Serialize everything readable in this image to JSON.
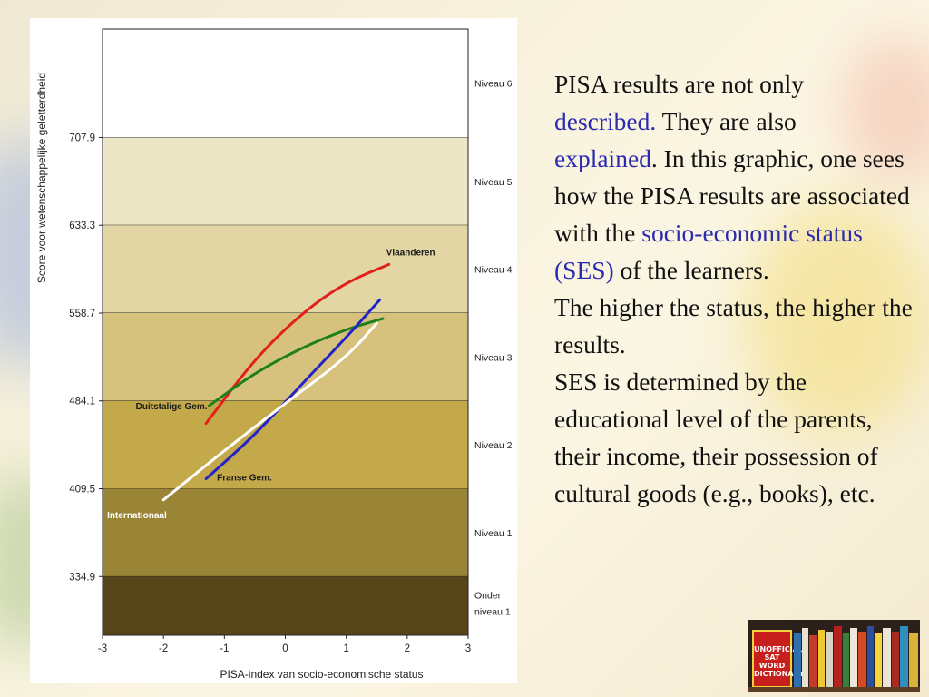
{
  "chart_data": {
    "type": "line",
    "ylabel": "Score voor wetenschappelijke geletterdheid",
    "xlabel": "PISA-index van socio-economische status",
    "xlim": [
      -3,
      3
    ],
    "ylim": [
      285,
      800
    ],
    "x_ticks": [
      "-3",
      "-2",
      "-1",
      "0",
      "1",
      "2",
      "3"
    ],
    "y_ticks": [
      334.9,
      409.5,
      484.1,
      558.7,
      633.3,
      707.9
    ],
    "bands": [
      {
        "label": "Niveau 6",
        "from": 707.9,
        "to": 800,
        "color": "#ffffff"
      },
      {
        "label": "Niveau 5",
        "from": 633.3,
        "to": 707.9,
        "color": "#ece5c6"
      },
      {
        "label": "Niveau 4",
        "from": 558.7,
        "to": 633.3,
        "color": "#e2d6a4"
      },
      {
        "label": "Niveau 3",
        "from": 484.1,
        "to": 558.7,
        "color": "#d6c27c"
      },
      {
        "label": "Niveau 2",
        "from": 409.5,
        "to": 484.1,
        "color": "#c4a94a"
      },
      {
        "label": "Niveau 1",
        "from": 334.9,
        "to": 409.5,
        "color": "#9a8435"
      },
      {
        "label": "Onder niveau 1",
        "from": 285,
        "to": 334.9,
        "color": "#564519"
      }
    ],
    "series": [
      {
        "name": "Vlaanderen",
        "color": "#e0201a",
        "x": [
          -1.3,
          -0.5,
          0.3,
          1.0,
          1.7
        ],
        "y": [
          465,
          520,
          560,
          585,
          600
        ]
      },
      {
        "name": "Duitstalige Gem.",
        "color": "#1d7f1d",
        "x": [
          -1.25,
          -0.5,
          0.3,
          1.0,
          1.6
        ],
        "y": [
          480,
          508,
          530,
          545,
          554
        ]
      },
      {
        "name": "Franse Gem.",
        "color": "#2323c8",
        "x": [
          -1.3,
          -0.5,
          0.3,
          1.0,
          1.55
        ],
        "y": [
          418,
          455,
          500,
          538,
          570
        ]
      },
      {
        "name": "Internationaal",
        "color": "#ffffff",
        "x": [
          -2.0,
          -1.0,
          0.0,
          1.0,
          1.5
        ],
        "y": [
          400,
          442,
          482,
          521,
          550
        ]
      }
    ]
  },
  "text": {
    "p1_a": "PISA results are not only",
    "p1_b": "described.",
    "p1_c": " They are also",
    "p1_d": "explained",
    "p1_e": ". In this graphic, one sees how the PISA results are associated with the ",
    "p1_f": "socio-economic status (SES)",
    "p1_g": " of the learners.",
    "p2": "The higher the status, the higher the results.",
    "p3": "SES is determined by the educational level of the parents, their income, their possession of cultural goods (e.g., books), etc."
  },
  "image": {
    "dictionary_title": "UNOFFICIAL SAT WORD DICTIONARY"
  }
}
